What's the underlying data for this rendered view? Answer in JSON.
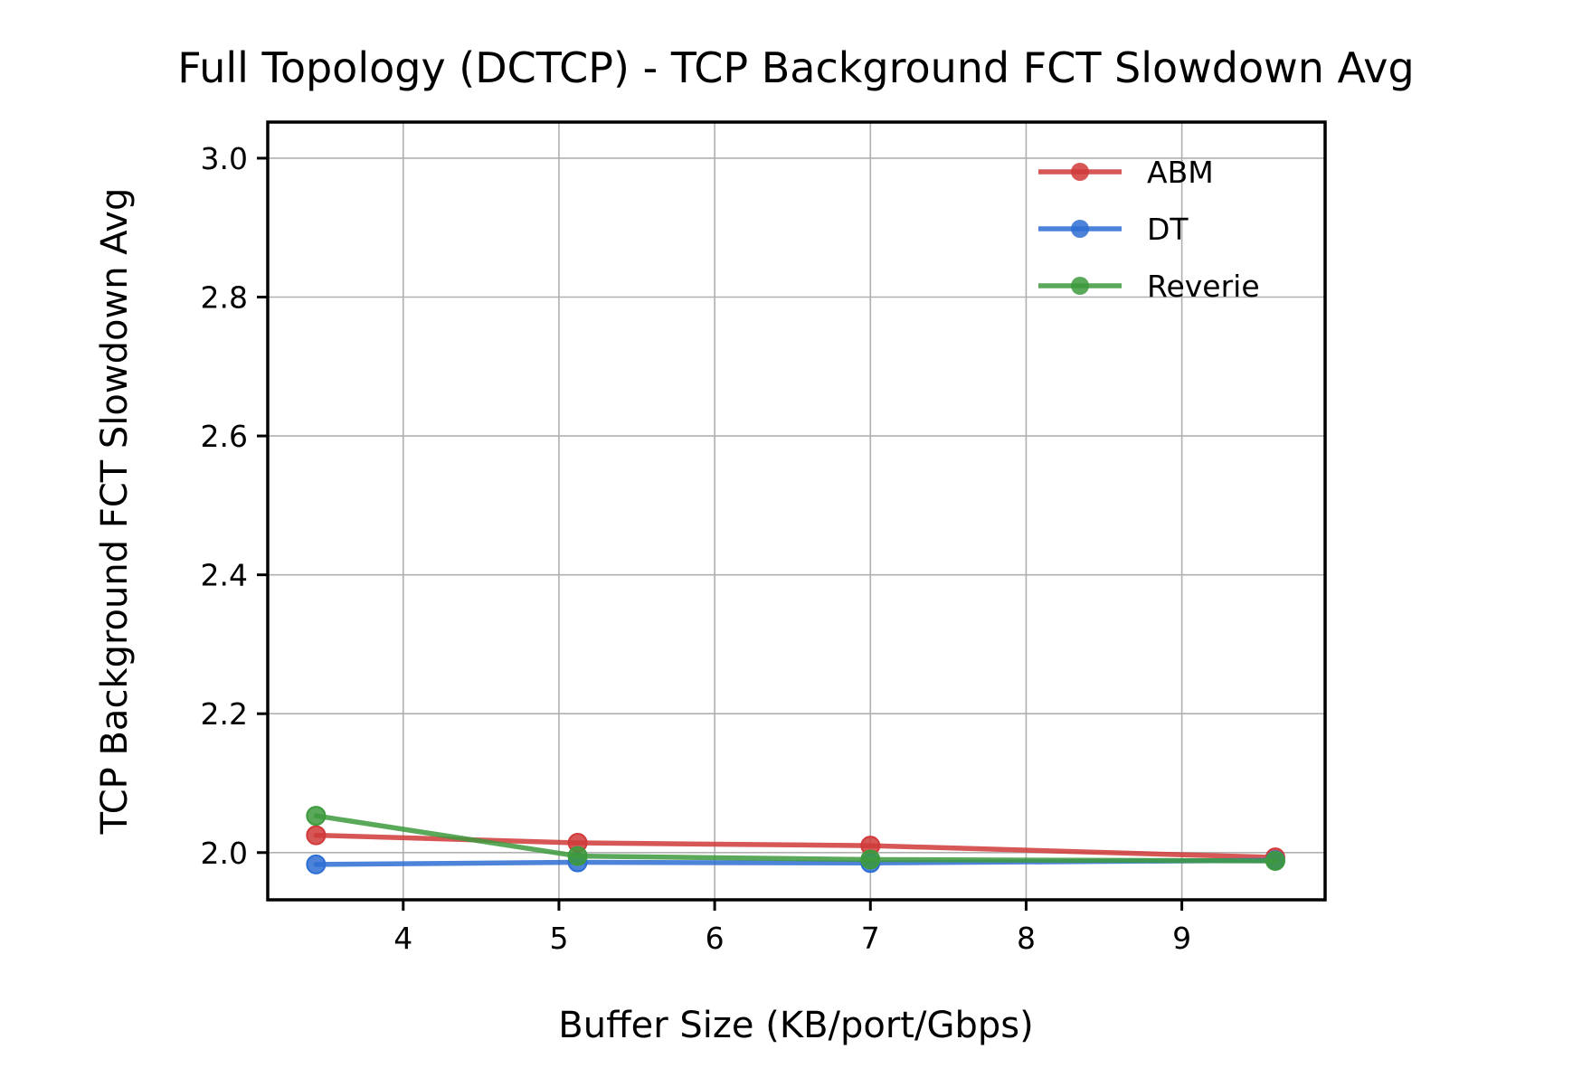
{
  "chart_data": {
    "type": "line",
    "title": "Full Topology (DCTCP) - TCP Background FCT Slowdown Avg",
    "xlabel": "Buffer Size (KB/port/Gbps)",
    "ylabel": "TCP Background FCT Slowdown Avg",
    "xlim": [
      3.13,
      9.92
    ],
    "ylim": [
      1.932,
      3.052
    ],
    "xticks": [
      4,
      5,
      6,
      7,
      8,
      9
    ],
    "yticks": [
      2.0,
      2.2,
      2.4,
      2.6,
      2.8,
      3.0
    ],
    "xtick_labels": [
      "4",
      "5",
      "6",
      "7",
      "8",
      "9"
    ],
    "ytick_labels": [
      "2.0",
      "2.2",
      "2.4",
      "2.6",
      "2.8",
      "3.0"
    ],
    "grid": true,
    "legend_position": "top-right",
    "series": [
      {
        "name": "ABM",
        "color": "#d03a3a",
        "x": [
          3.44,
          5.12,
          7.0,
          9.6
        ],
        "y": [
          2.025,
          2.014,
          2.01,
          1.993
        ]
      },
      {
        "name": "DT",
        "color": "#2e6fd4",
        "x": [
          3.44,
          5.12,
          7.0,
          9.6
        ],
        "y": [
          1.983,
          1.986,
          1.985,
          1.989
        ]
      },
      {
        "name": "Reverie",
        "color": "#3d9a3d",
        "x": [
          3.44,
          5.12,
          7.0,
          9.6
        ],
        "y": [
          2.053,
          1.995,
          1.99,
          1.988
        ]
      }
    ]
  }
}
